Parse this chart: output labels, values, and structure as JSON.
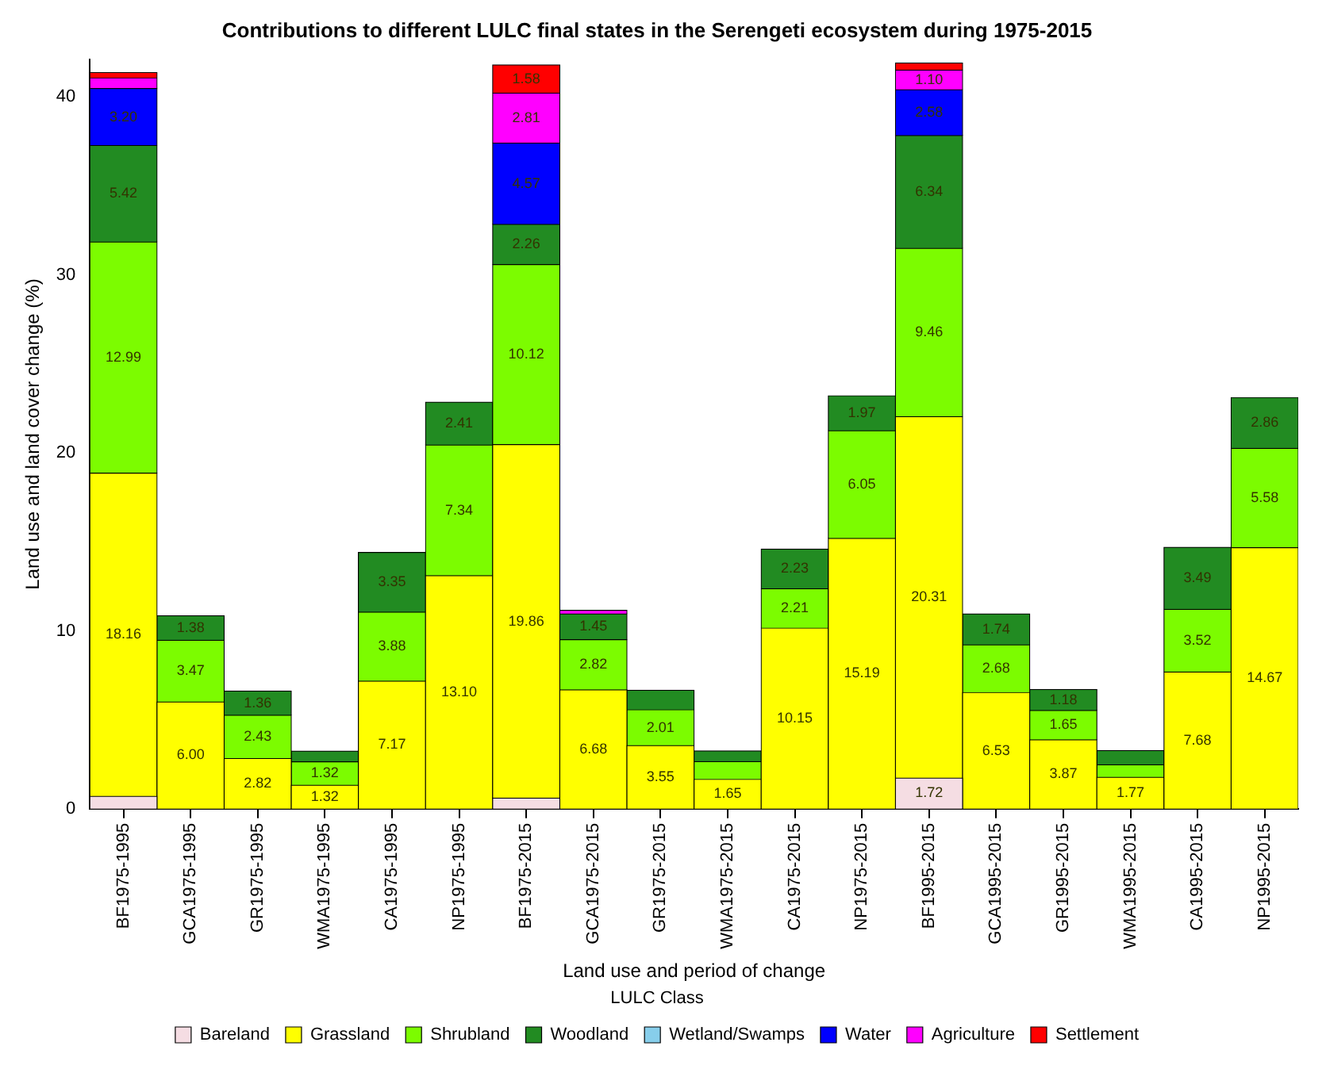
{
  "chart_data": {
    "type": "bar",
    "stacked": true,
    "title": "Contributions to different LULC final states in the Serengeti ecosystem during 1975-2015",
    "xlabel": "Land use and period of change",
    "ylabel": "Land use and land cover change (%)",
    "legend_title": "LULC Class",
    "legend": "bottom",
    "grid": false,
    "categories": [
      "BF1975-1995",
      "GCA1975-1995",
      "GR1975-1995",
      "WMA1975-1995",
      "CA1975-1995",
      "NP1975-1995",
      "BF1975-2015",
      "GCA1975-2015",
      "GR1975-2015",
      "WMA1975-2015",
      "CA1975-2015",
      "NP1975-2015",
      "BF1995-2015",
      "GCA1995-2015",
      "GR1995-2015",
      "WMA1995-2015",
      "CA1995-2015",
      "NP1995-2015"
    ],
    "ylim": [
      0,
      42.1
    ],
    "yticks": [
      0,
      10,
      20,
      30,
      40
    ],
    "series": [
      {
        "name": "Bareland",
        "color": "#f5dde3",
        "values": [
          0.7,
          null,
          null,
          null,
          null,
          null,
          0.6,
          null,
          null,
          null,
          null,
          null,
          1.72,
          null,
          null,
          null,
          null,
          null
        ],
        "value_labels": [
          null,
          null,
          null,
          null,
          null,
          null,
          null,
          null,
          null,
          null,
          null,
          null,
          "1.72",
          null,
          null,
          null,
          null,
          null
        ]
      },
      {
        "name": "Grassland",
        "color": "#ffff00",
        "values": [
          18.16,
          6.0,
          2.82,
          1.32,
          7.17,
          13.1,
          19.86,
          6.68,
          3.55,
          1.65,
          10.15,
          15.19,
          20.31,
          6.53,
          3.87,
          1.77,
          7.68,
          14.67
        ],
        "value_labels": [
          "18.16",
          "6.00",
          "2.82",
          "1.32",
          "7.17",
          "13.10",
          "19.86",
          "6.68",
          "3.55",
          "1.65",
          "10.15",
          "15.19",
          "20.31",
          "6.53",
          "3.87",
          "1.77",
          "7.68",
          "14.67"
        ]
      },
      {
        "name": "Shrubland",
        "color": "#7cfc00",
        "values": [
          12.99,
          3.47,
          2.43,
          1.32,
          3.88,
          7.34,
          10.12,
          2.82,
          2.01,
          1.0,
          2.21,
          6.05,
          9.46,
          2.68,
          1.65,
          0.7,
          3.52,
          5.58
        ],
        "value_labels": [
          "12.99",
          "3.47",
          "2.43",
          "1.32",
          "3.88",
          "7.34",
          "10.12",
          "2.82",
          "2.01",
          null,
          "2.21",
          "6.05",
          "9.46",
          "2.68",
          "1.65",
          null,
          "3.52",
          "5.58"
        ]
      },
      {
        "name": "Woodland",
        "color": "#228b22",
        "values": [
          5.42,
          1.38,
          1.36,
          0.6,
          3.35,
          2.41,
          2.26,
          1.45,
          1.1,
          0.6,
          2.23,
          1.97,
          6.34,
          1.74,
          1.18,
          0.8,
          3.49,
          2.86
        ],
        "value_labels": [
          "5.42",
          "1.38",
          "1.36",
          null,
          "3.35",
          "2.41",
          "2.26",
          "1.45",
          null,
          null,
          "2.23",
          "1.97",
          "6.34",
          "1.74",
          "1.18",
          null,
          "3.49",
          "2.86"
        ]
      },
      {
        "name": "Wetland/Swamps",
        "color": "#87ceeb",
        "values": [
          null,
          null,
          null,
          null,
          null,
          null,
          null,
          null,
          null,
          null,
          null,
          null,
          null,
          null,
          null,
          null,
          null,
          null
        ]
      },
      {
        "name": "Water",
        "color": "#0000ff",
        "values": [
          3.2,
          null,
          null,
          null,
          null,
          null,
          4.57,
          null,
          null,
          null,
          null,
          null,
          2.58,
          null,
          null,
          null,
          null,
          null
        ],
        "value_labels": [
          "3.20",
          null,
          null,
          null,
          null,
          null,
          "4.57",
          null,
          null,
          null,
          null,
          null,
          "2.58",
          null,
          null,
          null,
          null,
          null
        ]
      },
      {
        "name": "Agriculture",
        "color": "#ff00ff",
        "values": [
          0.6,
          null,
          null,
          null,
          null,
          null,
          2.81,
          0.2,
          null,
          null,
          null,
          null,
          1.1,
          null,
          null,
          null,
          null,
          null
        ],
        "value_labels": [
          null,
          null,
          null,
          null,
          null,
          null,
          "2.81",
          null,
          null,
          null,
          null,
          null,
          "1.10",
          null,
          null,
          null,
          null,
          null
        ]
      },
      {
        "name": "Settlement",
        "color": "#ff0000",
        "values": [
          0.3,
          null,
          null,
          null,
          null,
          null,
          1.58,
          null,
          null,
          null,
          null,
          null,
          0.4,
          null,
          null,
          null,
          null,
          null
        ],
        "value_labels": [
          null,
          null,
          null,
          null,
          null,
          null,
          "1.58",
          null,
          null,
          null,
          null,
          null,
          null,
          null,
          null,
          null,
          null,
          null
        ]
      }
    ]
  }
}
